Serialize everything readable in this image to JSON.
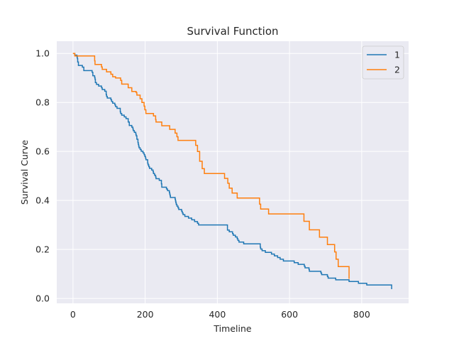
{
  "chart_data": {
    "type": "line",
    "step": true,
    "title": "Survival Function",
    "xlabel": "Timeline",
    "ylabel": "Survival Curve",
    "xlim": [
      -45,
      930
    ],
    "ylim": [
      -0.02,
      1.05
    ],
    "xticks": [
      0,
      200,
      400,
      600,
      800
    ],
    "yticks": [
      0.0,
      0.2,
      0.4,
      0.6,
      0.8,
      1.0
    ],
    "ytick_labels": [
      "0.0",
      "0.2",
      "0.4",
      "0.6",
      "0.8",
      "1.0"
    ],
    "grid": true,
    "legend_position": "top-right",
    "series": [
      {
        "name": "1",
        "color": "#1f77b4",
        "x": [
          0,
          5,
          11,
          12,
          13,
          15,
          26,
          30,
          53,
          55,
          60,
          61,
          62,
          65,
          71,
          79,
          81,
          88,
          92,
          93,
          95,
          105,
          107,
          110,
          116,
          118,
          122,
          131,
          132,
          135,
          142,
          147,
          153,
          156,
          163,
          166,
          167,
          170,
          174,
          175,
          177,
          180,
          181,
          182,
          183,
          186,
          189,
          194,
          197,
          199,
          201,
          202,
          207,
          208,
          210,
          212,
          218,
          222,
          223,
          226,
          229,
          230,
          239,
          245,
          246,
          259,
          262,
          267,
          268,
          269,
          270,
          283,
          284,
          285,
          286,
          288,
          291,
          293,
          301,
          303,
          305,
          310,
          320,
          329,
          337,
          345,
          348,
          350,
          351,
          353,
          361,
          363,
          364,
          371,
          376,
          382,
          384,
          387,
          390,
          394,
          428,
          429,
          433,
          442,
          444,
          450,
          455,
          457,
          460,
          473,
          477,
          519,
          520,
          524,
          533,
          550,
          558,
          567,
          574,
          583,
          613,
          624,
          641,
          643,
          654,
          655,
          687,
          689,
          705,
          707,
          728,
          731,
          735,
          740,
          765,
          791,
          814,
          821,
          840,
          883
        ],
        "values": [
          1.0,
          0.993,
          0.986,
          0.979,
          0.965,
          0.951,
          0.944,
          0.93,
          0.923,
          0.909,
          0.902,
          0.895,
          0.881,
          0.874,
          0.867,
          0.86,
          0.853,
          0.846,
          0.832,
          0.825,
          0.818,
          0.811,
          0.804,
          0.797,
          0.79,
          0.783,
          0.776,
          0.762,
          0.755,
          0.748,
          0.741,
          0.734,
          0.72,
          0.706,
          0.699,
          0.692,
          0.685,
          0.678,
          0.671,
          0.664,
          0.65,
          0.636,
          0.629,
          0.622,
          0.615,
          0.608,
          0.601,
          0.594,
          0.587,
          0.58,
          0.573,
          0.566,
          0.552,
          0.545,
          0.538,
          0.531,
          0.524,
          0.517,
          0.51,
          0.503,
          0.496,
          0.489,
          0.482,
          0.468,
          0.454,
          0.447,
          0.44,
          0.433,
          0.426,
          0.419,
          0.412,
          0.405,
          0.398,
          0.391,
          0.384,
          0.377,
          0.37,
          0.363,
          0.356,
          0.349,
          0.342,
          0.335,
          0.328,
          0.321,
          0.314,
          0.307,
          0.3,
          0.3,
          0.3,
          0.3,
          0.3,
          0.3,
          0.3,
          0.3,
          0.3,
          0.3,
          0.3,
          0.3,
          0.3,
          0.3,
          0.279,
          0.279,
          0.272,
          0.265,
          0.258,
          0.251,
          0.244,
          0.237,
          0.23,
          0.223,
          0.223,
          0.209,
          0.202,
          0.195,
          0.188,
          0.181,
          0.174,
          0.167,
          0.16,
          0.153,
          0.146,
          0.139,
          0.132,
          0.125,
          0.118,
          0.111,
          0.104,
          0.097,
          0.09,
          0.083,
          0.076,
          0.076,
          0.076,
          0.076,
          0.069,
          0.062,
          0.055,
          0.055,
          0.055,
          0.038
        ]
      },
      {
        "name": "2",
        "color": "#ff7f0e",
        "x": [
          0,
          5,
          11,
          12,
          60,
          61,
          62,
          79,
          81,
          88,
          93,
          95,
          105,
          107,
          110,
          116,
          118,
          131,
          132,
          135,
          147,
          153,
          156,
          163,
          170,
          175,
          177,
          180,
          186,
          191,
          197,
          199,
          201,
          202,
          208,
          210,
          212,
          223,
          226,
          229,
          230,
          245,
          246,
          268,
          269,
          270,
          283,
          285,
          288,
          291,
          293,
          301,
          310,
          320,
          340,
          345,
          351,
          353,
          358,
          361,
          364,
          371,
          377,
          420,
          429,
          433,
          441,
          444,
          450,
          455,
          456,
          457,
          460,
          477,
          517,
          519,
          520,
          524,
          542,
          550,
          558,
          567,
          583,
          613,
          624,
          640,
          643,
          655,
          659,
          683,
          689,
          705,
          707,
          708,
          725,
          729,
          731,
          735,
          740,
          761,
          765
        ],
        "values": [
          1.0,
          0.99,
          0.99,
          0.99,
          0.97,
          0.955,
          0.955,
          0.945,
          0.935,
          0.935,
          0.925,
          0.925,
          0.915,
          0.915,
          0.905,
          0.905,
          0.9,
          0.9,
          0.89,
          0.875,
          0.875,
          0.86,
          0.86,
          0.845,
          0.845,
          0.84,
          0.83,
          0.83,
          0.815,
          0.8,
          0.785,
          0.77,
          0.77,
          0.755,
          0.755,
          0.755,
          0.755,
          0.745,
          0.745,
          0.73,
          0.72,
          0.72,
          0.705,
          0.69,
          0.69,
          0.69,
          0.675,
          0.675,
          0.66,
          0.645,
          0.645,
          0.645,
          0.645,
          0.645,
          0.625,
          0.6,
          0.56,
          0.56,
          0.53,
          0.53,
          0.51,
          0.51,
          0.51,
          0.49,
          0.47,
          0.45,
          0.43,
          0.43,
          0.43,
          0.41,
          0.41,
          0.41,
          0.41,
          0.41,
          0.385,
          0.385,
          0.365,
          0.365,
          0.345,
          0.345,
          0.345,
          0.345,
          0.345,
          0.345,
          0.345,
          0.315,
          0.315,
          0.28,
          0.28,
          0.25,
          0.25,
          0.22,
          0.22,
          0.22,
          0.19,
          0.16,
          0.16,
          0.13,
          0.13,
          0.13,
          0.08
        ]
      }
    ]
  }
}
